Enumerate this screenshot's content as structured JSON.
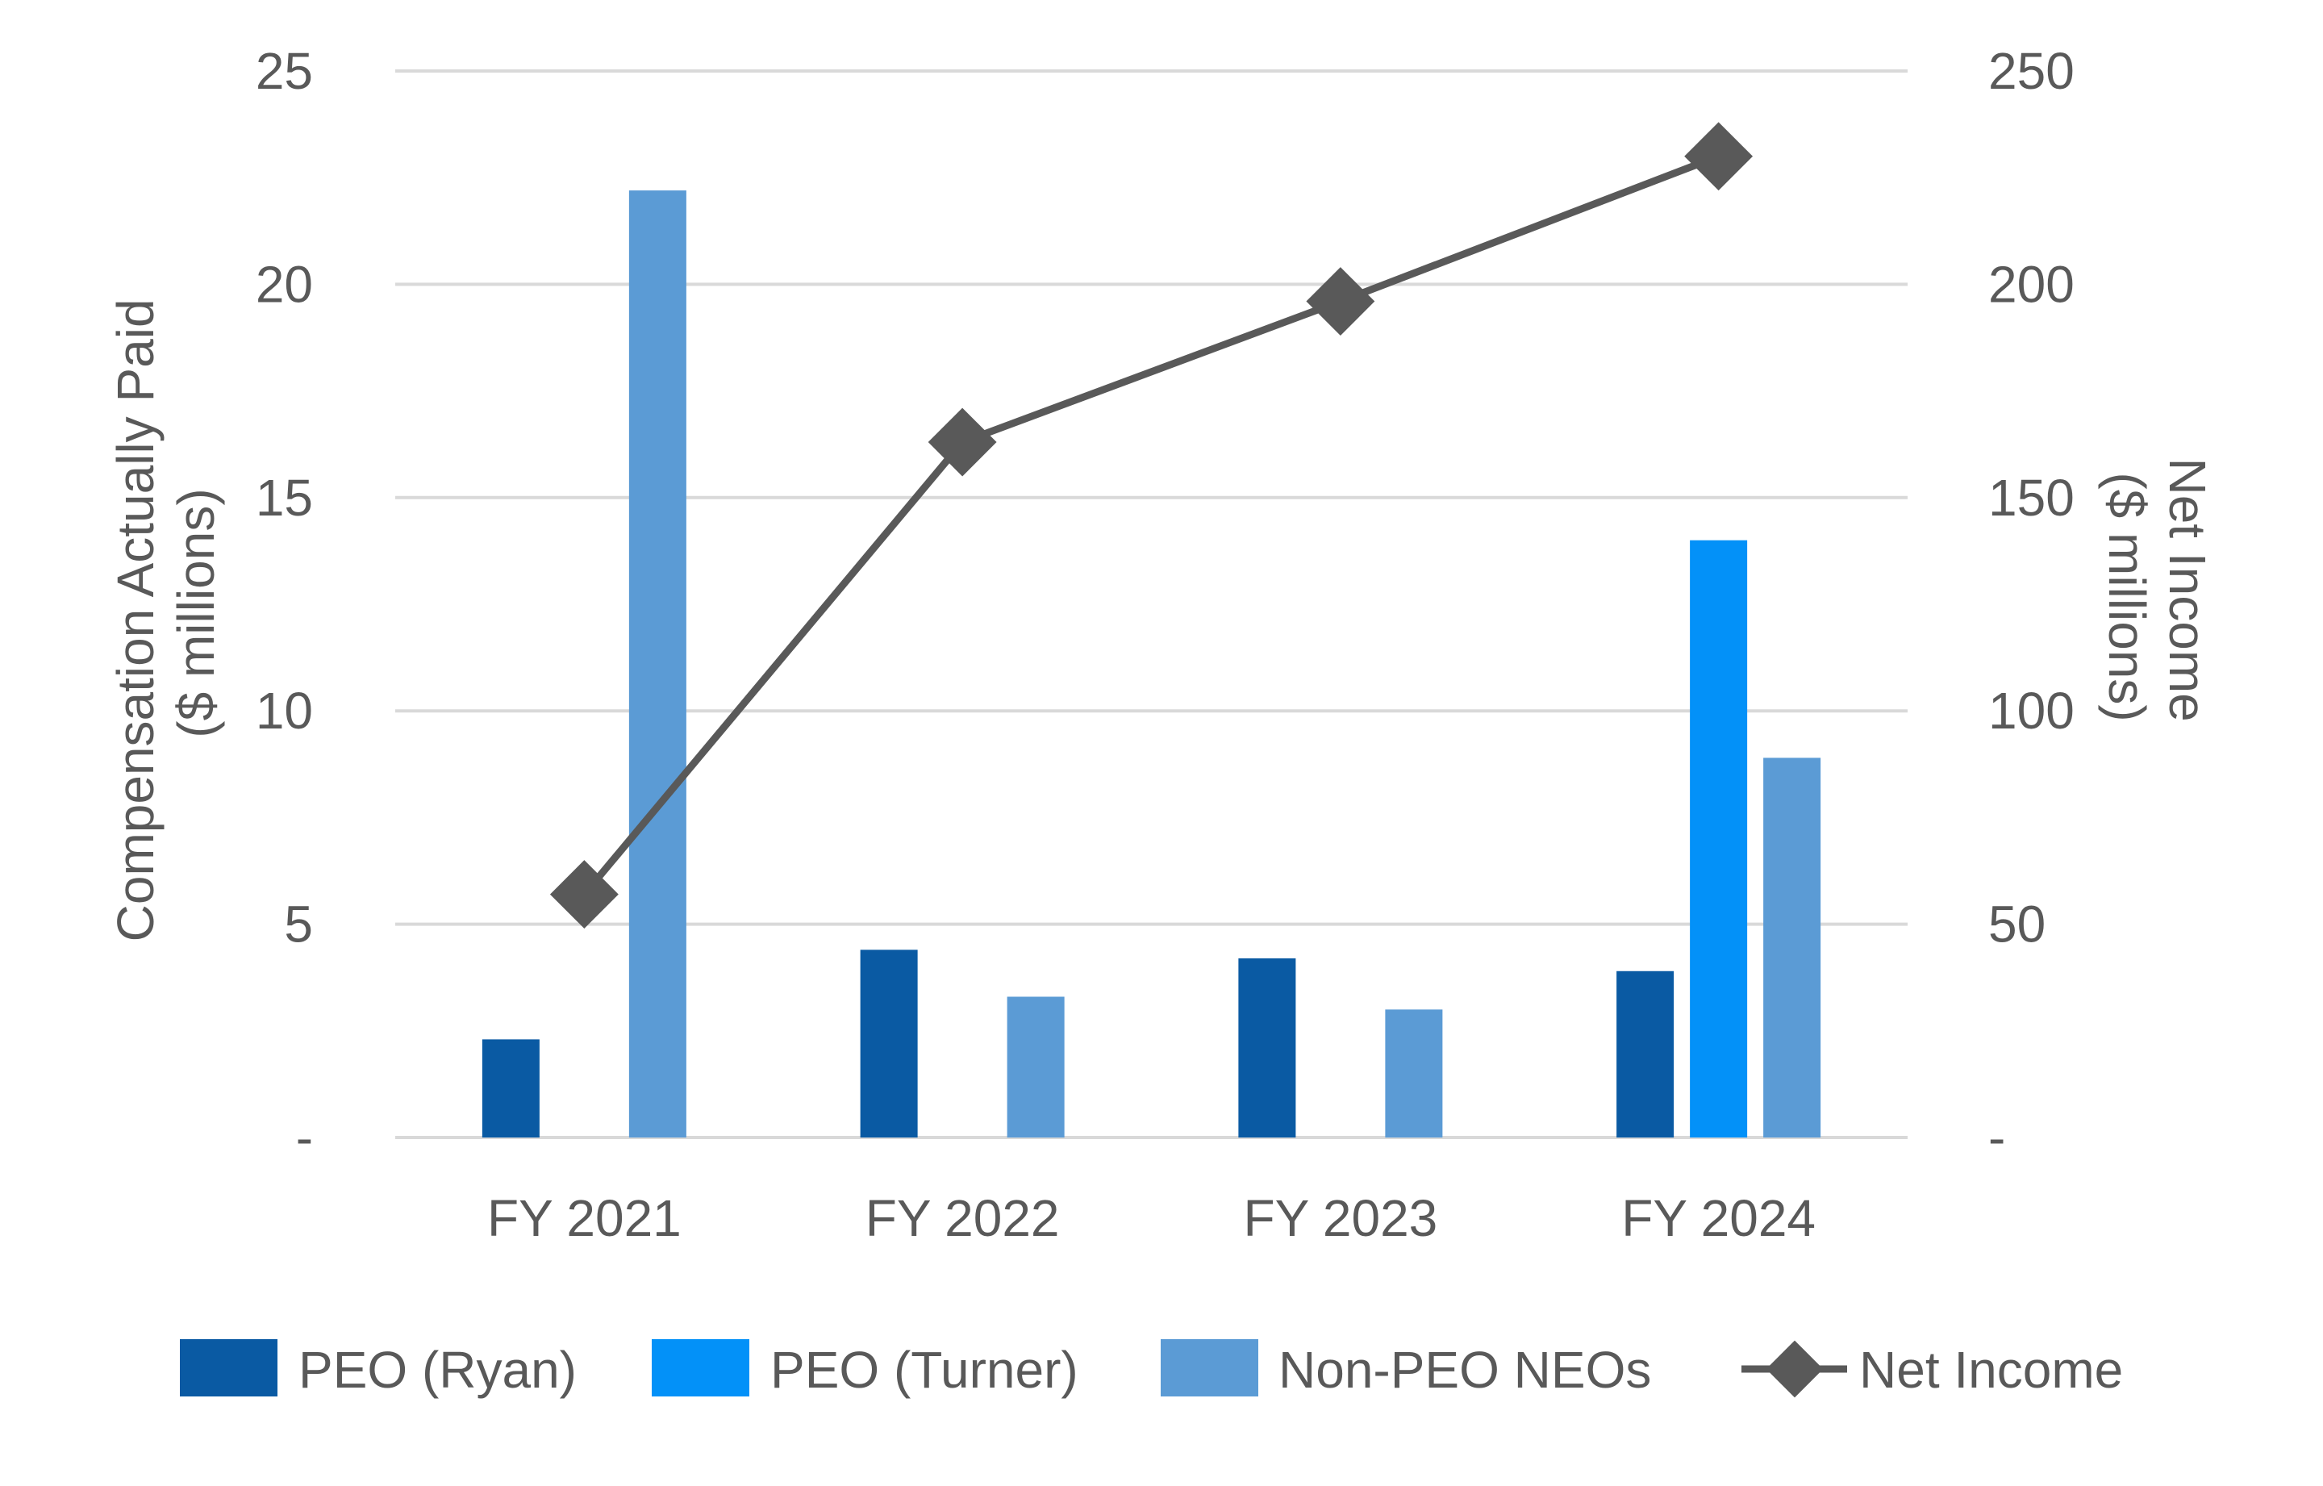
{
  "chart_data": {
    "type": "bar",
    "categories": [
      "FY 2021",
      "FY 2022",
      "FY 2023",
      "FY 2024"
    ],
    "series": [
      {
        "name": "PEO (Ryan)",
        "color": "#0a5aa3",
        "axis": "left",
        "values": [
          2.3,
          4.4,
          4.2,
          3.9
        ]
      },
      {
        "name": "PEO (Turner)",
        "color": "#0391f8",
        "axis": "left",
        "values": [
          null,
          null,
          null,
          14.0
        ]
      },
      {
        "name": "Non-PEO NEOs",
        "color": "#5b9bd5",
        "axis": "left",
        "values": [
          22.2,
          3.3,
          3.0,
          8.9
        ]
      },
      {
        "name": "Net Income",
        "type": "line",
        "color": "#595959",
        "axis": "right",
        "values": [
          57,
          163,
          196,
          230
        ]
      }
    ],
    "y_left": {
      "label_line1": "Compensation Actually Paid",
      "label_line2": "($ millions)",
      "ylim": [
        0,
        25
      ],
      "ticks": [
        {
          "value": 0,
          "label": "-"
        },
        {
          "value": 5,
          "label": "5"
        },
        {
          "value": 10,
          "label": "10"
        },
        {
          "value": 15,
          "label": "15"
        },
        {
          "value": 20,
          "label": "20"
        },
        {
          "value": 25,
          "label": "25"
        }
      ]
    },
    "y_right": {
      "label_line1": "Net Income",
      "label_line2": "($ millions)",
      "ylim": [
        0,
        250
      ],
      "ticks": [
        {
          "value": 0,
          "label": "-"
        },
        {
          "value": 50,
          "label": "50"
        },
        {
          "value": 100,
          "label": "100"
        },
        {
          "value": 150,
          "label": "150"
        },
        {
          "value": 200,
          "label": "200"
        },
        {
          "value": 250,
          "label": "250"
        }
      ]
    },
    "grid": true,
    "legend_position": "bottom"
  }
}
